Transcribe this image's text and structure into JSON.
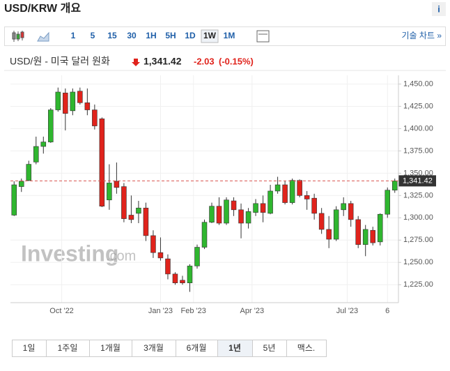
{
  "header": {
    "title": "USD/KRW 개요",
    "info": "i"
  },
  "toolbar": {
    "intervals": [
      "1",
      "5",
      "15",
      "30",
      "1H",
      "5H",
      "1D",
      "1W",
      "1M"
    ],
    "selected": "1W",
    "technical": "기술 차트 »"
  },
  "quote": {
    "name": "USD/원 - 미국 달러 원화",
    "price": "1,341.42",
    "change": "-2.03",
    "change_pct": "(-0.15%)"
  },
  "watermark": {
    "brand": "Investing",
    "suffix": ".com"
  },
  "ranges": {
    "items": [
      "1일",
      "1주일",
      "1개월",
      "3개월",
      "6개월",
      "1년",
      "5년",
      "맥스."
    ],
    "selected": "1년"
  },
  "chart_data": {
    "type": "candlestick",
    "up_color": "#2fb62f",
    "down_color": "#e0231c",
    "open": [
      1303,
      1335,
      1342,
      1362.5,
      1380,
      1385,
      1421,
      1440,
      1420,
      1442,
      1429,
      1421,
      1411,
      1320,
      1341,
      1335,
      1303,
      1305,
      1311,
      1280,
      1261,
      1254,
      1237,
      1230,
      1227,
      1246,
      1267,
      1295,
      1313,
      1294,
      1319,
      1309,
      1294,
      1306,
      1316,
      1305,
      1330,
      1337,
      1317,
      1342,
      1325,
      1322,
      1305,
      1287,
      1276,
      1309,
      1316,
      1298,
      1270,
      1286,
      1273,
      1304,
      1331
    ],
    "high": [
      1341,
      1344,
      1364,
      1391,
      1391,
      1423,
      1446,
      1445,
      1445,
      1446,
      1445,
      1427,
      1412.5,
      1360,
      1362,
      1339,
      1325,
      1319,
      1317,
      1286,
      1278,
      1259,
      1239,
      1235,
      1248,
      1270,
      1298,
      1317,
      1323,
      1323,
      1323,
      1316,
      1311,
      1321,
      1325,
      1337,
      1346,
      1341,
      1344,
      1343,
      1330,
      1327,
      1311,
      1302,
      1313,
      1323,
      1319,
      1302,
      1292,
      1290,
      1305,
      1334,
      1344
    ],
    "low": [
      1302,
      1329,
      1341,
      1360,
      1372,
      1384,
      1419,
      1398,
      1415,
      1427,
      1415,
      1399,
      1312,
      1309,
      1327,
      1295,
      1294,
      1294,
      1274,
      1255,
      1252,
      1231,
      1225,
      1225,
      1217,
      1243,
      1265,
      1294,
      1292,
      1292,
      1302,
      1277,
      1288,
      1302,
      1295,
      1304,
      1327,
      1315,
      1315,
      1323,
      1309,
      1298,
      1282,
      1266,
      1274,
      1302,
      1290,
      1266,
      1257,
      1269,
      1269,
      1300,
      1328
    ],
    "close": [
      1337,
      1341,
      1360,
      1380,
      1385,
      1421,
      1441,
      1417,
      1441,
      1429,
      1421,
      1403,
      1313,
      1339,
      1334,
      1299,
      1298,
      1311,
      1280,
      1261,
      1255,
      1237,
      1227,
      1227,
      1246,
      1267,
      1295,
      1313,
      1294,
      1320,
      1309,
      1294,
      1307,
      1316,
      1306,
      1330,
      1337,
      1317,
      1342,
      1325,
      1321,
      1305,
      1287,
      1276,
      1309,
      1316,
      1298,
      1270,
      1287,
      1272,
      1304,
      1331,
      1341.42
    ],
    "xlim": [
      -0.5,
      52.5
    ],
    "xticks": [
      {
        "value": 6.5,
        "label": "Oct '22"
      },
      {
        "value": 20,
        "label": "Jan '23"
      },
      {
        "value": 24.5,
        "label": "Feb '23"
      },
      {
        "value": 32.5,
        "label": "Apr '23"
      },
      {
        "value": 45.5,
        "label": "Jul '23"
      },
      {
        "value": 51,
        "label": "6"
      }
    ],
    "ylim": [
      1208,
      1466
    ],
    "yticks": [
      {
        "value": 1225,
        "label": "1,225.00"
      },
      {
        "value": 1250,
        "label": "1,250.00"
      },
      {
        "value": 1275,
        "label": "1,275.00"
      },
      {
        "value": 1300,
        "label": "1,300.00"
      },
      {
        "value": 1325,
        "label": "1,325.00"
      },
      {
        "value": 1350,
        "label": "1,350.00"
      },
      {
        "value": 1375,
        "label": "1,375.00"
      },
      {
        "value": 1400,
        "label": "1,400.00"
      },
      {
        "value": 1425,
        "label": "1,425.00"
      },
      {
        "value": 1450,
        "label": "1,450.00"
      }
    ],
    "last_price": {
      "value": 1341.42,
      "label": "1,341.42"
    },
    "last_price_color": "#d9534f"
  }
}
